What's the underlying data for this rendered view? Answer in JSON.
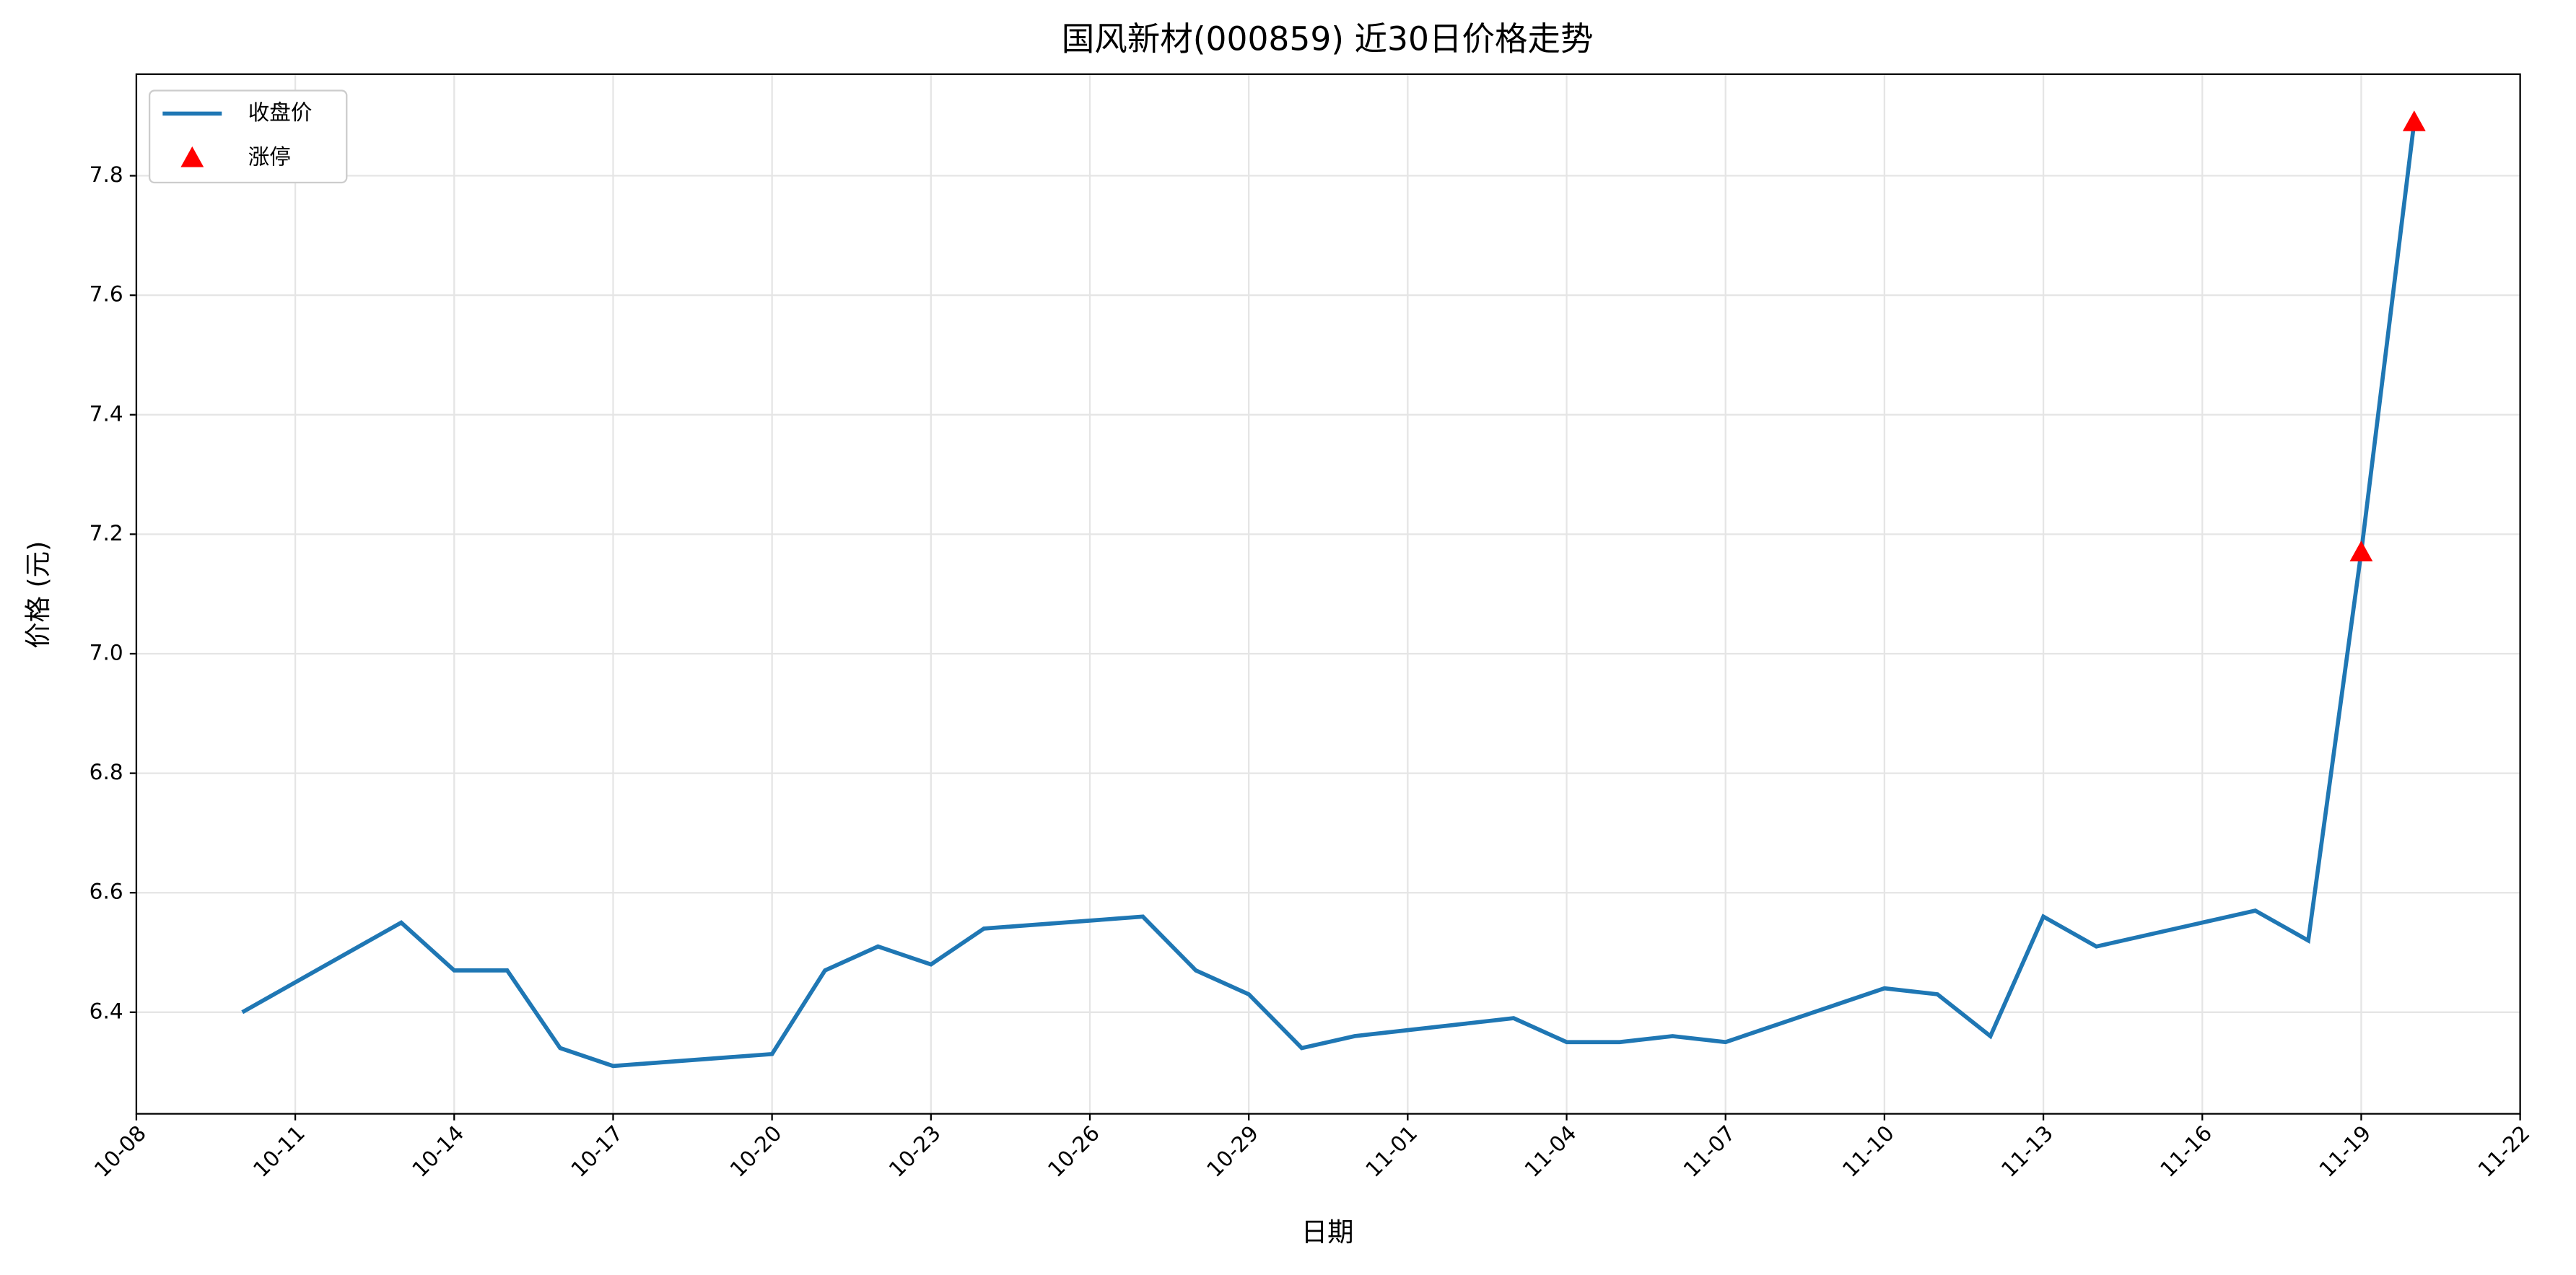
{
  "chart_data": {
    "type": "line",
    "title": "国风新材(000859) 近30日价格走势",
    "xlabel": "日期",
    "ylabel": "价格 (元)",
    "x": [
      "10-10",
      "10-13",
      "10-14",
      "10-15",
      "10-16",
      "10-17",
      "10-20",
      "10-21",
      "10-22",
      "10-23",
      "10-24",
      "10-27",
      "10-28",
      "10-29",
      "10-30",
      "10-31",
      "11-03",
      "11-04",
      "11-05",
      "11-06",
      "11-07",
      "11-10",
      "11-11",
      "11-12",
      "11-13",
      "11-14",
      "11-17",
      "11-18",
      "11-19",
      "11-20"
    ],
    "series": [
      {
        "name": "收盘价",
        "type": "line",
        "color": "#1f77b4",
        "values": [
          6.4,
          6.55,
          6.47,
          6.47,
          6.34,
          6.31,
          6.33,
          6.47,
          6.51,
          6.48,
          6.54,
          6.56,
          6.47,
          6.43,
          6.34,
          6.36,
          6.39,
          6.35,
          6.35,
          6.36,
          6.35,
          6.44,
          6.43,
          6.36,
          6.56,
          6.51,
          6.57,
          6.52,
          7.17,
          7.89
        ]
      },
      {
        "name": "涨停",
        "type": "scatter",
        "color": "#ff0000",
        "x": [
          "11-19",
          "11-20"
        ],
        "values": [
          7.17,
          7.89
        ]
      }
    ],
    "xlim": [
      "10-08",
      "11-22"
    ],
    "xticks": [
      "10-08",
      "10-11",
      "10-14",
      "10-17",
      "10-20",
      "10-23",
      "10-26",
      "10-29",
      "11-01",
      "11-04",
      "11-07",
      "11-10",
      "11-13",
      "11-16",
      "11-19",
      "11-22"
    ],
    "ylim": [
      6.23,
      7.97
    ],
    "yticks": [
      6.4,
      6.6,
      6.8,
      {
        "value": 7,
        "label": "7.0"
      },
      7.2,
      7.4,
      7.6,
      7.8
    ],
    "grid": true,
    "legend": "upper-left"
  }
}
